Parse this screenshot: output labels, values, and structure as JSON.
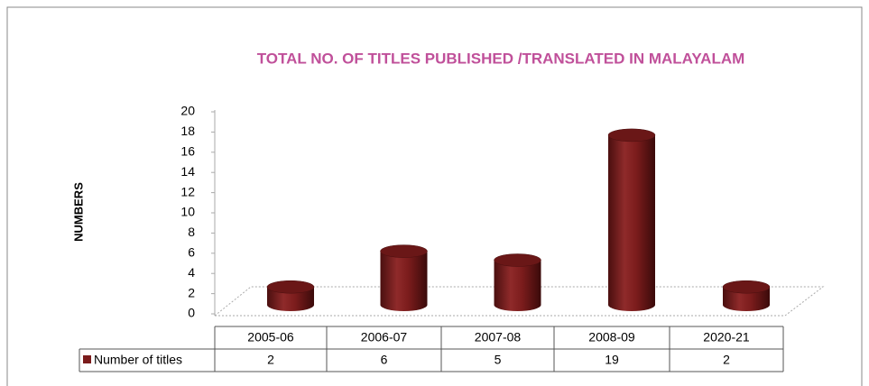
{
  "chart_data": {
    "type": "bar",
    "title": "TOTAL NO. OF TITLES PUBLISHED /TRANSLATED  IN MALAYALAM",
    "y_label": "NUMBERS",
    "categories": [
      "2005-06",
      "2006-07",
      "2007-08",
      "2008-09",
      "2020-21"
    ],
    "series": [
      {
        "name": "Number of titles",
        "color": "#7b1c1c",
        "values": [
          2,
          6,
          5,
          19,
          2
        ]
      }
    ],
    "ylim": [
      0,
      20
    ],
    "yticks": [
      0,
      2,
      4,
      6,
      8,
      10,
      12,
      14,
      16,
      18,
      20
    ]
  }
}
